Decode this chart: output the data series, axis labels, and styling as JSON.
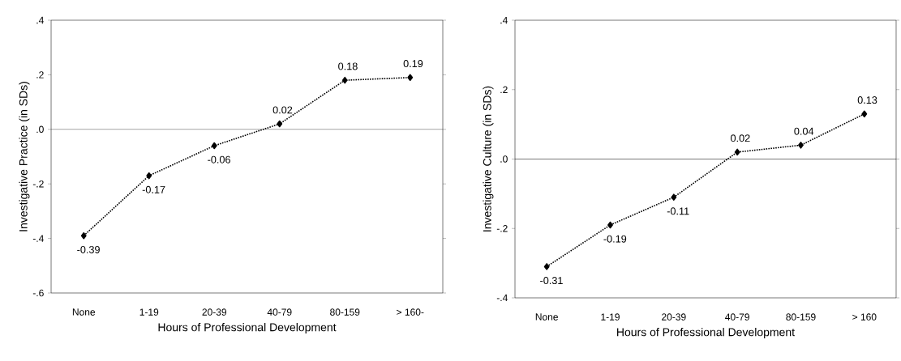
{
  "chart_data": [
    {
      "type": "line",
      "xlabel": "Hours of Professional Development",
      "ylabel": "Investigative Practice (in SDs)",
      "categories": [
        "None",
        "1-19",
        "20-39",
        "40-79",
        "80-159",
        "> 160-"
      ],
      "values": [
        -0.39,
        -0.17,
        -0.06,
        0.02,
        0.18,
        0.19
      ],
      "color": "#000000",
      "ylim": [
        -0.6,
        0.4
      ],
      "yticks": [
        {
          "value": 0.4,
          "label": ".4"
        },
        {
          "value": 0.2,
          "label": ".2"
        },
        {
          "value": 0,
          "label": ".0"
        },
        {
          "value": -0.2,
          "label": "-.2"
        },
        {
          "value": -0.4,
          "label": "-.4"
        },
        {
          "value": -0.6,
          "label": "-.6"
        }
      ],
      "ref_lines": [
        {
          "axis": "y",
          "value": 0,
          "color": "#000000"
        }
      ],
      "data_labels": true,
      "marker": "diamond",
      "line_style": "dotted"
    },
    {
      "type": "line",
      "xlabel": "Hours of Professional Development",
      "ylabel": "Investigative Culture (in SDs)",
      "categories": [
        "None",
        "1-19",
        "20-39",
        "40-79",
        "80-159",
        "> 160"
      ],
      "values": [
        -0.31,
        -0.19,
        -0.11,
        0.02,
        0.04,
        0.13
      ],
      "color": "#000000",
      "ylim": [
        -0.4,
        0.4
      ],
      "yticks": [
        {
          "value": 0.4,
          "label": ".4"
        },
        {
          "value": 0.2,
          "label": ".2"
        },
        {
          "value": 0,
          "label": ".0"
        },
        {
          "value": -0.2,
          "label": "-.2"
        },
        {
          "value": -0.4,
          "label": "-.4"
        }
      ],
      "ref_lines": [
        {
          "axis": "y",
          "value": 0,
          "color": "#000000"
        }
      ],
      "data_labels": true,
      "marker": "diamond",
      "line_style": "dotted"
    }
  ]
}
